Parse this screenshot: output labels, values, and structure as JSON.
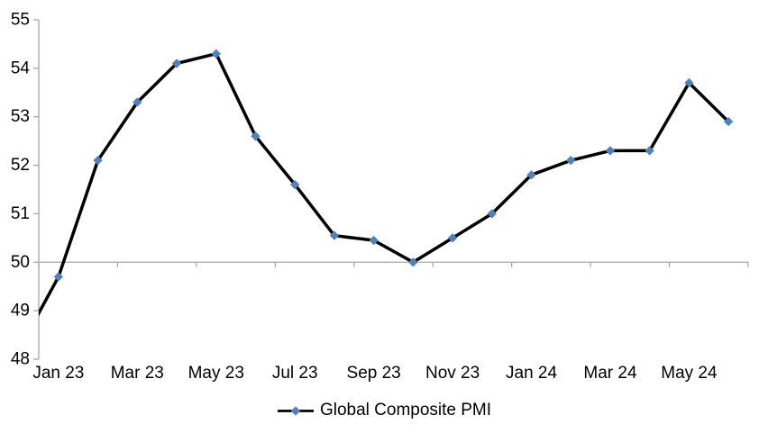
{
  "chart_data": {
    "type": "line",
    "legend": "Global Composite PMI",
    "legend_position": "bottom",
    "categories": [
      "Jan 23",
      "Feb 23",
      "Mar 23",
      "Apr 23",
      "May 23",
      "Jun 23",
      "Jul 23",
      "Aug 23",
      "Sep 23",
      "Oct 23",
      "Nov 23",
      "Dec 23",
      "Jan 24",
      "Feb 24",
      "Mar 24",
      "Apr 24",
      "May 24",
      "Jun 24"
    ],
    "values": [
      49.7,
      52.1,
      53.3,
      54.1,
      54.3,
      52.6,
      51.6,
      50.55,
      50.45,
      50.0,
      50.5,
      51.0,
      51.8,
      52.1,
      52.3,
      52.3,
      53.7,
      52.9
    ],
    "lead_in": {
      "category": "Dec 22",
      "value": 48.2,
      "clipped_off_plot": true
    },
    "x_tick_labels": [
      "Jan 23",
      "Mar 23",
      "May 23",
      "Jul 23",
      "Sep 23",
      "Nov 23",
      "Jan 24",
      "Mar 24",
      "May 24"
    ],
    "x_label_interval": 2,
    "y_ticks": [
      55,
      54,
      53,
      52,
      51,
      50,
      49,
      48
    ],
    "ylim": [
      48,
      55
    ],
    "axis_crosses_at": 50,
    "grid": "none",
    "marker": "diamond",
    "colors": {
      "line": "#000000",
      "marker": "#4F81BD",
      "axis": "#A6A6A6",
      "text": "#000000",
      "background": "#FFFFFF"
    }
  }
}
